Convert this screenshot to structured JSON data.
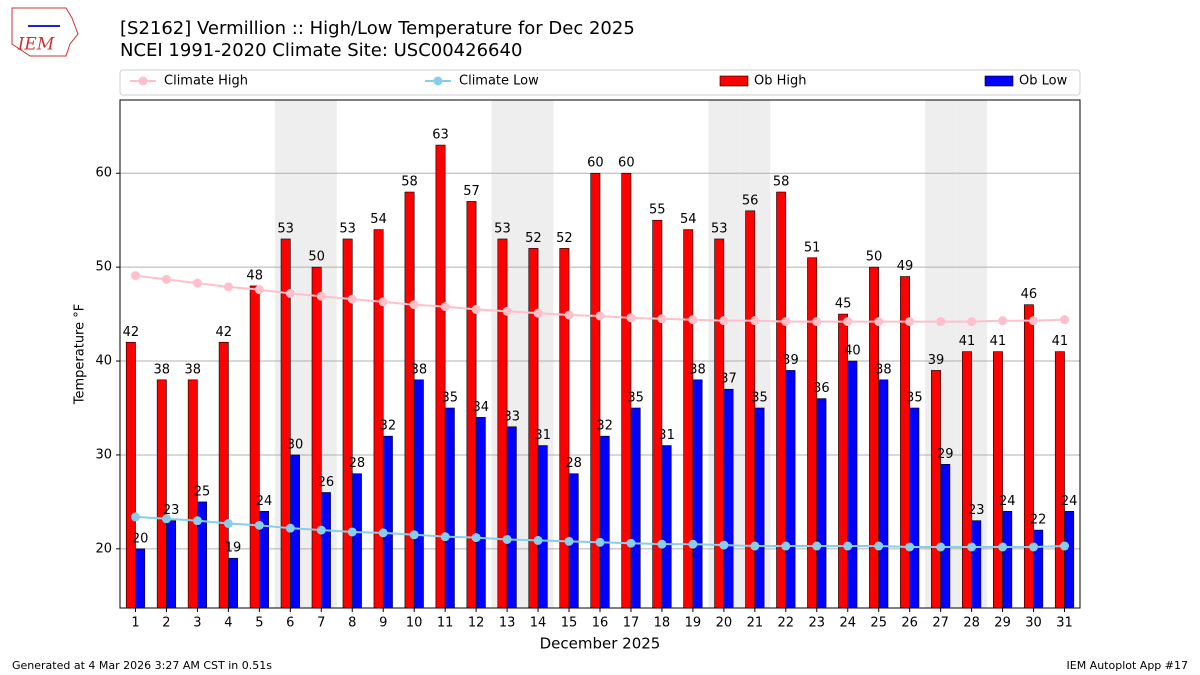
{
  "chart_data": {
    "type": "bar",
    "title": "[S2162] Vermillion :: High/Low Temperature for Dec 2025",
    "subtitle": "NCEI 1991-2020 Climate Site: USC00426640",
    "xlabel": "December 2025",
    "ylabel": "Temperature °F",
    "footer_left": "Generated at 4 Mar 2026 3:27 AM CST in 0.51s",
    "footer_right": "IEM Autoplot App #17",
    "logo": "IEM",
    "categories": [
      "1",
      "2",
      "3",
      "4",
      "5",
      "6",
      "7",
      "8",
      "9",
      "10",
      "11",
      "12",
      "13",
      "14",
      "15",
      "16",
      "17",
      "18",
      "19",
      "20",
      "21",
      "22",
      "23",
      "24",
      "25",
      "26",
      "27",
      "28",
      "29",
      "30",
      "31"
    ],
    "shaded_categories": [
      "6",
      "7",
      "13",
      "14",
      "20",
      "21",
      "27",
      "28"
    ],
    "series": [
      {
        "name": "Climate High",
        "type": "line",
        "color": "#ffc0cb",
        "values": [
          49.1,
          48.7,
          48.3,
          47.9,
          47.6,
          47.2,
          46.9,
          46.6,
          46.3,
          46.0,
          45.8,
          45.5,
          45.3,
          45.1,
          44.9,
          44.8,
          44.6,
          44.5,
          44.4,
          44.3,
          44.3,
          44.2,
          44.2,
          44.2,
          44.2,
          44.2,
          44.2,
          44.2,
          44.3,
          44.3,
          44.4
        ]
      },
      {
        "name": "Climate Low",
        "type": "line",
        "color": "#87ceeb",
        "values": [
          23.4,
          23.2,
          23.0,
          22.7,
          22.5,
          22.2,
          22.0,
          21.8,
          21.7,
          21.5,
          21.3,
          21.2,
          21.0,
          20.9,
          20.8,
          20.7,
          20.6,
          20.5,
          20.5,
          20.4,
          20.3,
          20.3,
          20.3,
          20.3,
          20.3,
          20.2,
          20.2,
          20.2,
          20.2,
          20.2,
          20.3
        ]
      },
      {
        "name": "Ob High",
        "type": "bar",
        "color": "#ff0000",
        "values": [
          42,
          38,
          38,
          42,
          48,
          53,
          50,
          53,
          54,
          58,
          63,
          57,
          53,
          52,
          52,
          60,
          60,
          55,
          54,
          53,
          56,
          58,
          51,
          45,
          50,
          49,
          39,
          41,
          41,
          46,
          41
        ]
      },
      {
        "name": "Ob Low",
        "type": "bar",
        "color": "#0000ff",
        "values": [
          20,
          23,
          25,
          19,
          24,
          30,
          26,
          28,
          32,
          38,
          35,
          34,
          33,
          31,
          28,
          32,
          35,
          31,
          38,
          37,
          35,
          39,
          36,
          40,
          38,
          35,
          29,
          23,
          24,
          22,
          24
        ]
      }
    ],
    "ylim": [
      13.7,
      67.8
    ],
    "yticks": [
      20,
      30,
      40,
      50,
      60
    ],
    "grid": true
  }
}
